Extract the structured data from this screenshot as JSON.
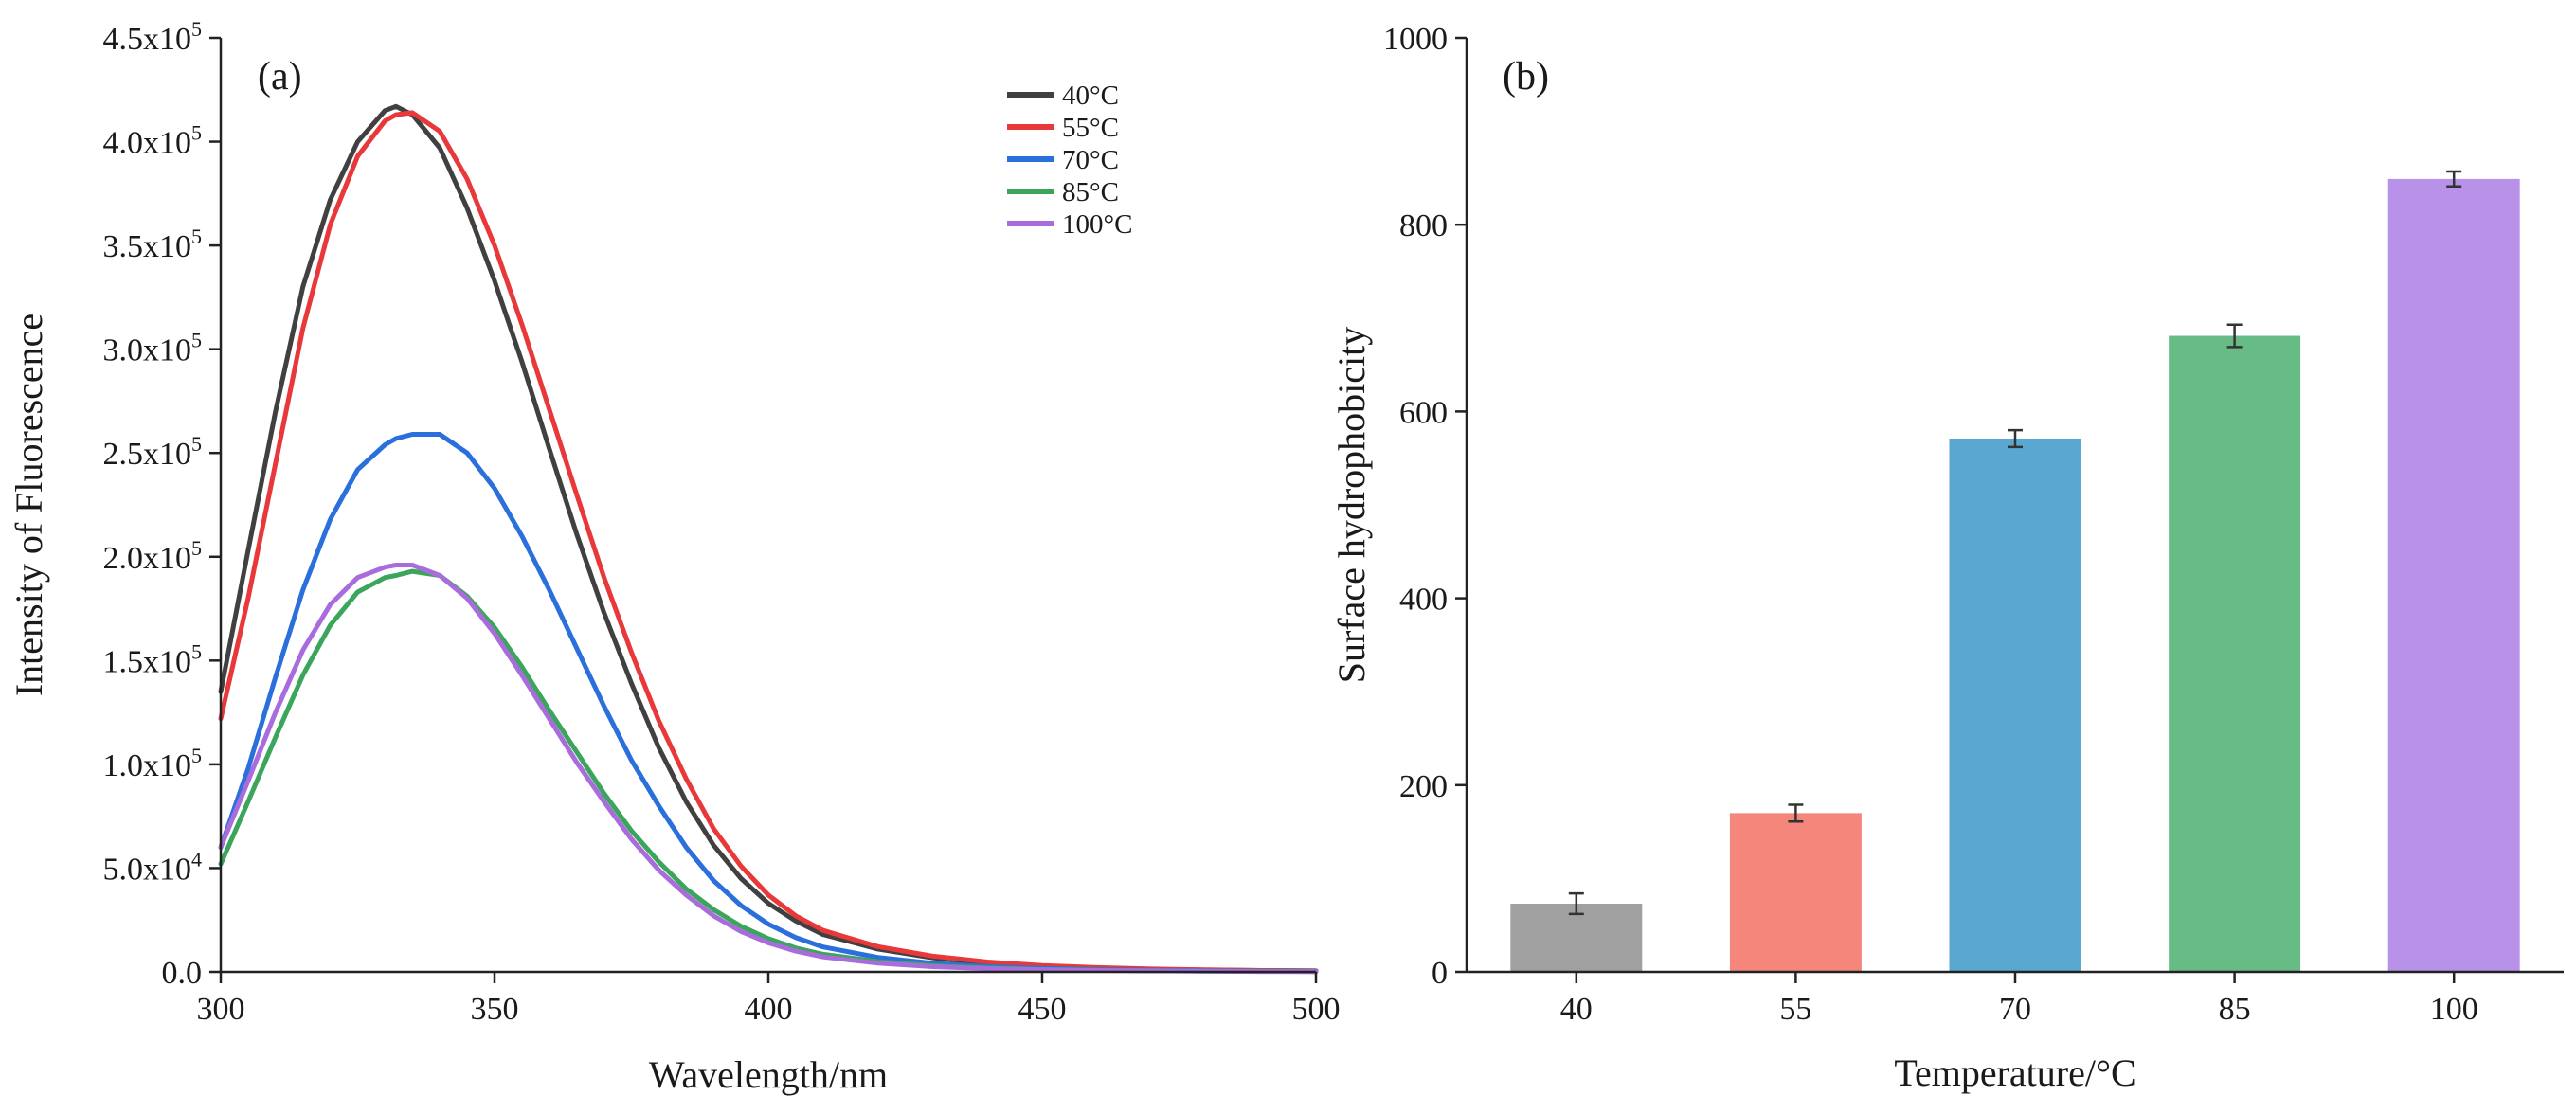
{
  "chart_data": [
    {
      "type": "line",
      "panel_label": "(a)",
      "title": "",
      "xlabel": "Wavelength/nm",
      "ylabel": "Intensity of Fluorescence",
      "xlim": [
        300,
        500
      ],
      "ylim": [
        0,
        450000
      ],
      "xticks": [
        300,
        350,
        400,
        450,
        500
      ],
      "xtick_labels": [
        "300",
        "350",
        "400",
        "450",
        "500"
      ],
      "yticks": [
        0,
        50000,
        100000,
        150000,
        200000,
        250000,
        300000,
        350000,
        400000,
        450000
      ],
      "ytick_labels": [
        {
          "base": "0.0",
          "exp": ""
        },
        {
          "base": "5.0x10",
          "exp": "4"
        },
        {
          "base": "1.0x10",
          "exp": "5"
        },
        {
          "base": "1.5x10",
          "exp": "5"
        },
        {
          "base": "2.0x10",
          "exp": "5"
        },
        {
          "base": "2.5x10",
          "exp": "5"
        },
        {
          "base": "3.0x10",
          "exp": "5"
        },
        {
          "base": "3.5x10",
          "exp": "5"
        },
        {
          "base": "4.0x10",
          "exp": "5"
        },
        {
          "base": "4.5x10",
          "exp": "5"
        }
      ],
      "legend_position": "top-right",
      "x": [
        300,
        305,
        310,
        315,
        320,
        325,
        330,
        332,
        335,
        340,
        345,
        350,
        355,
        360,
        365,
        370,
        375,
        380,
        385,
        390,
        395,
        400,
        405,
        410,
        420,
        430,
        440,
        450,
        460,
        470,
        480,
        490,
        500
      ],
      "series": [
        {
          "name": "40°C",
          "color": "#404040",
          "values": [
            135000,
            203000,
            270000,
            330000,
            372000,
            400000,
            415000,
            417000,
            413000,
            397000,
            368000,
            333000,
            294000,
            252000,
            211000,
            173000,
            139000,
            108000,
            82000,
            61000,
            45000,
            33000,
            24500,
            18000,
            11000,
            6800,
            4300,
            2800,
            1900,
            1300,
            900,
            700,
            500
          ]
        },
        {
          "name": "55°C",
          "color": "#e8383a",
          "values": [
            122000,
            180000,
            245000,
            310000,
            360000,
            393000,
            410000,
            413000,
            414000,
            405000,
            382000,
            350000,
            312000,
            271000,
            230000,
            190000,
            154000,
            121000,
            93000,
            69000,
            51000,
            37000,
            27000,
            20000,
            12200,
            7600,
            4800,
            3100,
            2100,
            1400,
            1000,
            700,
            500
          ]
        },
        {
          "name": "70°C",
          "color": "#2a6fdb",
          "values": [
            60000,
            98000,
            142000,
            184000,
            218000,
            242000,
            254000,
            257000,
            259000,
            259000,
            250000,
            233000,
            210000,
            184000,
            156000,
            128000,
            102000,
            80000,
            60000,
            44000,
            32000,
            23000,
            16500,
            12000,
            7000,
            4200,
            2600,
            1700,
            1100,
            800,
            600,
            400,
            300
          ]
        },
        {
          "name": "85°C",
          "color": "#3ba55c",
          "values": [
            52000,
            82000,
            113000,
            143000,
            167000,
            183000,
            190000,
            191000,
            193000,
            191000,
            181000,
            166000,
            147000,
            126000,
            106000,
            86000,
            68000,
            53000,
            40000,
            30000,
            22000,
            16000,
            11500,
            8500,
            5000,
            3000,
            1900,
            1200,
            800,
            600,
            400,
            300,
            200
          ]
        },
        {
          "name": "100°C",
          "color": "#a86cdc",
          "values": [
            60000,
            92000,
            125000,
            155000,
            177000,
            190000,
            195000,
            196000,
            196000,
            191000,
            180000,
            163000,
            143000,
            122000,
            101000,
            82000,
            64000,
            49000,
            37000,
            27000,
            19500,
            14000,
            10000,
            7200,
            4200,
            2500,
            1600,
            1000,
            700,
            500,
            300,
            200,
            150
          ]
        }
      ]
    },
    {
      "type": "bar",
      "panel_label": "(b)",
      "title": "",
      "xlabel": "Temperature/°C",
      "ylabel": "Surface hydrophobicity",
      "ylim": [
        0,
        1000
      ],
      "yticks": [
        0,
        200,
        400,
        600,
        800,
        1000
      ],
      "ytick_labels": [
        "0",
        "200",
        "400",
        "600",
        "800",
        "1000"
      ],
      "categories": [
        "40",
        "55",
        "70",
        "85",
        "100"
      ],
      "values": [
        73,
        170,
        571,
        681,
        849
      ],
      "errors": [
        11,
        9,
        9,
        12,
        8
      ],
      "colors": [
        "#a0a0a0",
        "#f5867c",
        "#5aa8d2",
        "#66bc84",
        "#b891e8"
      ]
    }
  ]
}
